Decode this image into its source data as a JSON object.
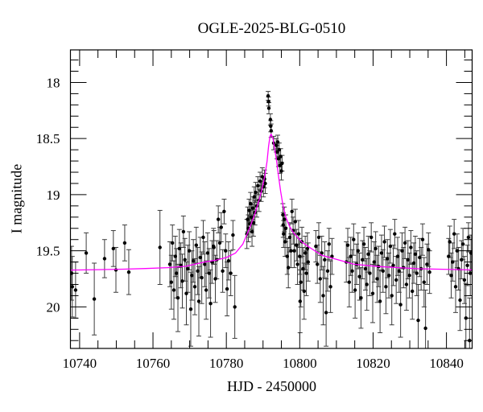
{
  "chart_data": {
    "type": "scatter",
    "title": "OGLE-2025-BLG-0510",
    "xlabel": "HJD - 2450000",
    "ylabel": "I magnitude",
    "xlim": [
      10737.5,
      10847.0
    ],
    "ylim": [
      20.37,
      17.71
    ],
    "y_inverted": true,
    "grid": false,
    "legend": "none",
    "point_color": "#000000",
    "errorbar_color": "#3c3c3c",
    "model_color": "#ff00ff",
    "x_ticks": {
      "major": [
        {
          "v": 10740,
          "label": "10740"
        },
        {
          "v": 10760,
          "label": "10760"
        },
        {
          "v": 10780,
          "label": "10780"
        },
        {
          "v": 10800,
          "label": "10800"
        },
        {
          "v": 10820,
          "label": "10820"
        },
        {
          "v": 10840,
          "label": "10840"
        }
      ],
      "minor": [
        10745,
        10750,
        10755,
        10765,
        10770,
        10775,
        10785,
        10790,
        10795,
        10805,
        10810,
        10815,
        10825,
        10830,
        10835,
        10845
      ]
    },
    "y_ticks": {
      "major": [
        {
          "v": 18,
          "label": "18"
        },
        {
          "v": 18.5,
          "label": "18.5"
        },
        {
          "v": 19,
          "label": "19"
        },
        {
          "v": 19.5,
          "label": "19.5"
        },
        {
          "v": 20,
          "label": "20"
        }
      ],
      "minor": [
        17.8,
        17.9,
        18.1,
        18.2,
        18.3,
        18.4,
        18.6,
        18.7,
        18.8,
        18.9,
        19.1,
        19.2,
        19.3,
        19.4,
        19.6,
        19.7,
        19.8,
        19.9,
        20.1,
        20.2,
        20.3
      ]
    },
    "model_curve": [
      [
        10737.6,
        19.672
      ],
      [
        10745,
        19.668
      ],
      [
        10752,
        19.664
      ],
      [
        10758,
        19.658
      ],
      [
        10764,
        19.65
      ],
      [
        10769,
        19.638
      ],
      [
        10774,
        19.6
      ],
      [
        10777,
        19.585
      ],
      [
        10780,
        19.56
      ],
      [
        10782.5,
        19.52
      ],
      [
        10784.5,
        19.44
      ],
      [
        10786.3,
        19.3
      ],
      [
        10787.8,
        19.17
      ],
      [
        10789.1,
        19.03
      ],
      [
        10790.0,
        18.91
      ],
      [
        10790.6,
        18.81
      ],
      [
        10791.1,
        18.7
      ],
      [
        10791.5,
        18.57
      ],
      [
        10791.9,
        18.48
      ],
      [
        10792.2,
        18.46
      ],
      [
        10792.7,
        18.5
      ],
      [
        10793.1,
        18.58
      ],
      [
        10793.7,
        18.7
      ],
      [
        10794.2,
        18.83
      ],
      [
        10794.8,
        18.97
      ],
      [
        10795.4,
        19.09
      ],
      [
        10796.2,
        19.2
      ],
      [
        10797.2,
        19.28
      ],
      [
        10798.3,
        19.34
      ],
      [
        10800.5,
        19.42
      ],
      [
        10802.7,
        19.47
      ],
      [
        10806,
        19.54
      ],
      [
        10809.3,
        19.57
      ],
      [
        10814.8,
        19.62
      ],
      [
        10821.4,
        19.64
      ],
      [
        10832.4,
        19.66
      ],
      [
        10846.9,
        19.67
      ]
    ],
    "points": [
      [
        10737.8,
        19.7,
        0.24
      ],
      [
        10738.0,
        19.82,
        0.27
      ],
      [
        10738.9,
        19.85,
        0.25
      ],
      [
        10741.8,
        19.52,
        0.18
      ],
      [
        10744.0,
        19.93,
        0.32
      ],
      [
        10746.8,
        19.57,
        0.17
      ],
      [
        10749.2,
        19.48,
        0.16
      ],
      [
        10749.9,
        19.67,
        0.2
      ],
      [
        10752.3,
        19.43,
        0.16
      ],
      [
        10753.4,
        19.69,
        0.2
      ],
      [
        10761.9,
        19.47,
        0.33
      ],
      [
        10764.6,
        19.62,
        0.2
      ],
      [
        10765.0,
        19.78,
        0.24
      ],
      [
        10765.3,
        19.43,
        0.16
      ],
      [
        10765.7,
        19.85,
        0.26
      ],
      [
        10766.1,
        19.55,
        0.18
      ],
      [
        10766.4,
        19.7,
        0.22
      ],
      [
        10766.8,
        19.92,
        0.3
      ],
      [
        10767.2,
        19.48,
        0.17
      ],
      [
        10767.6,
        19.63,
        0.2
      ],
      [
        10768.0,
        19.77,
        0.24
      ],
      [
        10768.3,
        19.33,
        0.14
      ],
      [
        10768.7,
        19.58,
        0.19
      ],
      [
        10769.1,
        19.88,
        0.28
      ],
      [
        10769.5,
        19.66,
        0.21
      ],
      [
        10769.9,
        19.5,
        0.17
      ],
      [
        10770.3,
        20.02,
        0.33
      ],
      [
        10770.6,
        19.72,
        0.22
      ],
      [
        10771.0,
        19.59,
        0.19
      ],
      [
        10771.4,
        19.82,
        0.25
      ],
      [
        10771.8,
        19.45,
        0.16
      ],
      [
        10772.2,
        19.68,
        0.21
      ],
      [
        10772.5,
        19.95,
        0.31
      ],
      [
        10772.9,
        19.56,
        0.18
      ],
      [
        10773.3,
        19.74,
        0.23
      ],
      [
        10773.7,
        19.38,
        0.15
      ],
      [
        10774.1,
        19.62,
        0.2
      ],
      [
        10774.5,
        19.85,
        0.26
      ],
      [
        10774.9,
        19.52,
        0.18
      ],
      [
        10775.3,
        19.7,
        0.22
      ],
      [
        10775.7,
        19.97,
        0.3
      ],
      [
        10776.1,
        19.6,
        0.19
      ],
      [
        10776.5,
        19.46,
        0.16
      ],
      [
        10776.6,
        19.47,
        0.15
      ],
      [
        10777.0,
        19.75,
        0.21
      ],
      [
        10777.4,
        19.58,
        0.17
      ],
      [
        10777.8,
        19.22,
        0.12
      ],
      [
        10778.2,
        19.43,
        0.14
      ],
      [
        10778.6,
        19.29,
        0.13
      ],
      [
        10779.0,
        19.68,
        0.19
      ],
      [
        10779.4,
        19.15,
        0.11
      ],
      [
        10779.8,
        19.5,
        0.15
      ],
      [
        10780.2,
        19.84,
        0.24
      ],
      [
        10780.6,
        19.59,
        0.17
      ],
      [
        10781.2,
        19.7,
        0.2
      ],
      [
        10781.8,
        19.36,
        0.13
      ],
      [
        10782.3,
        20.0,
        0.28
      ],
      [
        10785.6,
        19.35,
        0.13
      ],
      [
        10785.8,
        19.22,
        0.11
      ],
      [
        10786.0,
        19.3,
        0.12
      ],
      [
        10786.2,
        19.14,
        0.1
      ],
      [
        10786.4,
        19.26,
        0.12
      ],
      [
        10786.6,
        19.08,
        0.1
      ],
      [
        10786.8,
        19.2,
        0.11
      ],
      [
        10787.0,
        19.33,
        0.13
      ],
      [
        10787.2,
        19.12,
        0.1
      ],
      [
        10787.4,
        19.25,
        0.12
      ],
      [
        10787.6,
        19.02,
        0.09
      ],
      [
        10787.8,
        19.16,
        0.11
      ],
      [
        10788.0,
        18.98,
        0.09
      ],
      [
        10788.3,
        19.1,
        0.1
      ],
      [
        10788.6,
        18.92,
        0.08
      ],
      [
        10788.9,
        19.05,
        0.1
      ],
      [
        10789.2,
        18.88,
        0.08
      ],
      [
        10789.5,
        18.97,
        0.09
      ],
      [
        10789.8,
        18.84,
        0.08
      ],
      [
        10790.1,
        18.93,
        0.09
      ],
      [
        10790.4,
        18.86,
        0.08
      ],
      [
        10790.6,
        18.9,
        0.09
      ],
      [
        10791.4,
        18.12,
        0.04
      ],
      [
        10791.5,
        18.17,
        0.04
      ],
      [
        10791.6,
        18.23,
        0.05
      ],
      [
        10792.0,
        18.33,
        0.05
      ],
      [
        10792.1,
        18.39,
        0.05
      ],
      [
        10792.2,
        18.43,
        0.06
      ],
      [
        10792.9,
        18.54,
        0.06
      ],
      [
        10793.6,
        18.56,
        0.06
      ],
      [
        10793.8,
        18.62,
        0.06
      ],
      [
        10794.0,
        18.53,
        0.06
      ],
      [
        10794.2,
        18.68,
        0.07
      ],
      [
        10794.4,
        18.6,
        0.06
      ],
      [
        10794.6,
        18.74,
        0.07
      ],
      [
        10794.8,
        18.66,
        0.07
      ],
      [
        10795.0,
        18.79,
        0.08
      ],
      [
        10795.2,
        18.72,
        0.07
      ],
      [
        10795.4,
        19.18,
        0.1
      ],
      [
        10795.5,
        19.27,
        0.11
      ],
      [
        10795.6,
        19.35,
        0.12
      ],
      [
        10795.8,
        19.22,
        0.11
      ],
      [
        10796.0,
        19.42,
        0.13
      ],
      [
        10796.2,
        19.3,
        0.12
      ],
      [
        10796.6,
        19.55,
        0.16
      ],
      [
        10796.9,
        19.65,
        0.18
      ],
      [
        10797.3,
        19.38,
        0.13
      ],
      [
        10797.6,
        19.5,
        0.15
      ],
      [
        10797.9,
        19.15,
        0.11
      ],
      [
        10798.2,
        19.32,
        0.12
      ],
      [
        10798.5,
        19.5,
        0.15
      ],
      [
        10798.8,
        19.24,
        0.11
      ],
      [
        10799.1,
        19.45,
        0.14
      ],
      [
        10799.4,
        19.62,
        0.18
      ],
      [
        10799.7,
        19.35,
        0.12
      ],
      [
        10800.0,
        19.55,
        0.16
      ],
      [
        10800.1,
        19.95,
        0.28
      ],
      [
        10800.3,
        19.78,
        0.22
      ],
      [
        10800.6,
        19.42,
        0.13
      ],
      [
        10800.9,
        19.66,
        0.19
      ],
      [
        10801.2,
        19.86,
        0.25
      ],
      [
        10801.5,
        19.52,
        0.15
      ],
      [
        10801.8,
        19.7,
        0.2
      ],
      [
        10802.1,
        19.48,
        0.14
      ],
      [
        10802.3,
        19.6,
        0.17
      ],
      [
        10804.4,
        19.46,
        0.14
      ],
      [
        10804.8,
        19.62,
        0.17
      ],
      [
        10805.2,
        19.38,
        0.13
      ],
      [
        10805.6,
        19.75,
        0.21
      ],
      [
        10806.0,
        19.52,
        0.15
      ],
      [
        10806.4,
        19.9,
        0.26
      ],
      [
        10806.8,
        19.58,
        0.16
      ],
      [
        10807.2,
        20.05,
        0.3
      ],
      [
        10807.6,
        19.68,
        0.18
      ],
      [
        10808.0,
        19.44,
        0.14
      ],
      [
        10808.4,
        19.82,
        0.23
      ],
      [
        10808.8,
        19.55,
        0.16
      ],
      [
        10812.7,
        19.6,
        0.18
      ],
      [
        10813.1,
        19.45,
        0.15
      ],
      [
        10813.5,
        19.78,
        0.22
      ],
      [
        10813.9,
        19.55,
        0.17
      ],
      [
        10814.3,
        19.68,
        0.19
      ],
      [
        10814.7,
        19.4,
        0.14
      ],
      [
        10815.1,
        19.85,
        0.25
      ],
      [
        10815.5,
        19.62,
        0.18
      ],
      [
        10815.9,
        19.5,
        0.16
      ],
      [
        10816.3,
        19.73,
        0.21
      ],
      [
        10816.7,
        19.92,
        0.27
      ],
      [
        10817.1,
        19.58,
        0.17
      ],
      [
        10817.5,
        19.44,
        0.15
      ],
      [
        10817.9,
        19.66,
        0.19
      ],
      [
        10818.3,
        19.8,
        0.23
      ],
      [
        10818.7,
        19.53,
        0.16
      ],
      [
        10819.1,
        19.7,
        0.2
      ],
      [
        10819.5,
        19.38,
        0.13
      ],
      [
        10819.9,
        19.88,
        0.26
      ],
      [
        10820.3,
        19.6,
        0.18
      ],
      [
        10820.7,
        19.48,
        0.15
      ],
      [
        10821.1,
        19.75,
        0.21
      ],
      [
        10821.5,
        19.64,
        0.18
      ],
      [
        10821.9,
        19.95,
        0.28
      ],
      [
        10822.3,
        19.52,
        0.16
      ],
      [
        10822.7,
        19.68,
        0.19
      ],
      [
        10823.1,
        19.42,
        0.14
      ],
      [
        10823.5,
        19.82,
        0.24
      ],
      [
        10823.9,
        19.57,
        0.17
      ],
      [
        10824.3,
        19.72,
        0.2
      ],
      [
        10824.7,
        19.46,
        0.15
      ],
      [
        10825.1,
        19.9,
        0.26
      ],
      [
        10825.5,
        19.63,
        0.18
      ],
      [
        10825.9,
        19.35,
        0.13
      ],
      [
        10826.3,
        19.76,
        0.21
      ],
      [
        10826.7,
        19.55,
        0.17
      ],
      [
        10827.1,
        19.68,
        0.19
      ],
      [
        10827.5,
        19.98,
        0.29
      ],
      [
        10827.9,
        19.5,
        0.16
      ],
      [
        10828.3,
        19.65,
        0.18
      ],
      [
        10828.7,
        19.43,
        0.14
      ],
      [
        10829.1,
        19.8,
        0.23
      ],
      [
        10829.5,
        19.58,
        0.17
      ],
      [
        10829.9,
        19.72,
        0.2
      ],
      [
        10830.3,
        19.47,
        0.15
      ],
      [
        10830.7,
        19.86,
        0.25
      ],
      [
        10831.1,
        19.61,
        0.18
      ],
      [
        10831.5,
        19.53,
        0.16
      ],
      [
        10831.9,
        19.7,
        0.2
      ],
      [
        10832.3,
        20.12,
        0.32
      ],
      [
        10832.7,
        19.56,
        0.17
      ],
      [
        10833.1,
        19.66,
        0.19
      ],
      [
        10833.5,
        19.4,
        0.14
      ],
      [
        10833.9,
        19.78,
        0.22
      ],
      [
        10834.3,
        20.19,
        0.34
      ],
      [
        10834.7,
        19.62,
        0.18
      ],
      [
        10835.1,
        19.49,
        0.15
      ],
      [
        10835.4,
        19.69,
        0.19
      ],
      [
        10840.6,
        19.55,
        0.16
      ],
      [
        10840.9,
        19.42,
        0.14
      ],
      [
        10841.3,
        19.72,
        0.2
      ],
      [
        10841.7,
        19.6,
        0.17
      ],
      [
        10842.1,
        19.35,
        0.13
      ],
      [
        10842.5,
        19.82,
        0.23
      ],
      [
        10842.9,
        19.5,
        0.15
      ],
      [
        10843.3,
        19.66,
        0.19
      ],
      [
        10843.7,
        19.94,
        0.27
      ],
      [
        10844.1,
        19.58,
        0.17
      ],
      [
        10844.5,
        19.44,
        0.14
      ],
      [
        10844.9,
        19.76,
        0.21
      ],
      [
        10845.3,
        20.1,
        0.31
      ],
      [
        10845.7,
        19.63,
        0.18
      ],
      [
        10846.0,
        19.38,
        0.13
      ],
      [
        10846.3,
        20.3,
        0.38
      ],
      [
        10846.5,
        19.7,
        0.2
      ],
      [
        10846.7,
        19.52,
        0.16
      ]
    ]
  }
}
